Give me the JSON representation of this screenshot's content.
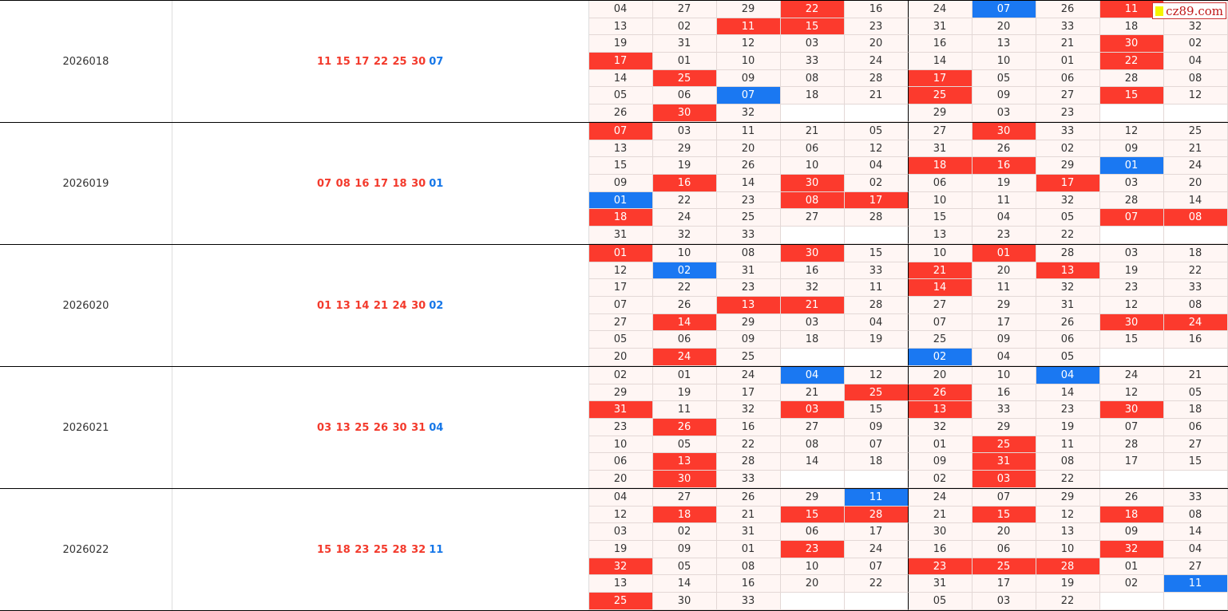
{
  "logo": {
    "text": "cz89.com"
  },
  "groups": [
    {
      "issue": "2026018",
      "reds": "11 15 17 22 25 30",
      "blue": "07",
      "values": [
        [
          "04",
          "27",
          "29",
          "22",
          "16",
          "24",
          "07",
          "26",
          "11",
          ""
        ],
        [
          "13",
          "02",
          "11",
          "15",
          "23",
          "31",
          "20",
          "33",
          "18",
          "32"
        ],
        [
          "19",
          "31",
          "12",
          "03",
          "20",
          "16",
          "13",
          "21",
          "30",
          "02"
        ],
        [
          "17",
          "01",
          "10",
          "33",
          "24",
          "14",
          "10",
          "01",
          "22",
          "04"
        ],
        [
          "14",
          "25",
          "09",
          "08",
          "28",
          "17",
          "05",
          "06",
          "28",
          "08"
        ],
        [
          "05",
          "06",
          "07",
          "18",
          "21",
          "25",
          "09",
          "27",
          "15",
          "12"
        ],
        [
          "26",
          "30",
          "32",
          "",
          "",
          "29",
          "03",
          "23",
          "",
          ""
        ]
      ],
      "marks": [
        [
          "",
          "",
          "",
          "r",
          "",
          "",
          "b",
          "",
          "r",
          ""
        ],
        [
          "",
          "",
          "r",
          "r",
          "",
          "",
          "",
          "",
          "",
          ""
        ],
        [
          "",
          "",
          "",
          "",
          "",
          "",
          "",
          "",
          "r",
          ""
        ],
        [
          "r",
          "",
          "",
          "",
          "",
          "",
          "",
          "",
          "r",
          ""
        ],
        [
          "",
          "r",
          "",
          "",
          "",
          "r",
          "",
          "",
          "",
          ""
        ],
        [
          "",
          "",
          "b",
          "",
          "",
          "r",
          "",
          "",
          "r",
          ""
        ],
        [
          "",
          "r",
          "",
          "",
          "",
          "",
          "",
          "",
          "",
          ""
        ]
      ]
    },
    {
      "issue": "2026019",
      "reds": "07 08 16 17 18 30",
      "blue": "01",
      "values": [
        [
          "07",
          "03",
          "11",
          "21",
          "05",
          "27",
          "30",
          "33",
          "12",
          "25"
        ],
        [
          "13",
          "29",
          "20",
          "06",
          "12",
          "31",
          "26",
          "02",
          "09",
          "21"
        ],
        [
          "15",
          "19",
          "26",
          "10",
          "04",
          "18",
          "16",
          "29",
          "01",
          "24"
        ],
        [
          "09",
          "16",
          "14",
          "30",
          "02",
          "06",
          "19",
          "17",
          "03",
          "20"
        ],
        [
          "01",
          "22",
          "23",
          "08",
          "17",
          "10",
          "11",
          "32",
          "28",
          "14"
        ],
        [
          "18",
          "24",
          "25",
          "27",
          "28",
          "15",
          "04",
          "05",
          "07",
          "08"
        ],
        [
          "31",
          "32",
          "33",
          "",
          "",
          "13",
          "23",
          "22",
          "",
          ""
        ]
      ],
      "marks": [
        [
          "r",
          "",
          "",
          "",
          "",
          "",
          "r",
          "",
          "",
          ""
        ],
        [
          "",
          "",
          "",
          "",
          "",
          "",
          "",
          "",
          "",
          ""
        ],
        [
          "",
          "",
          "",
          "",
          "",
          "r",
          "r",
          "",
          "b",
          ""
        ],
        [
          "",
          "r",
          "",
          "r",
          "",
          "",
          "",
          "r",
          "",
          ""
        ],
        [
          "b",
          "",
          "",
          "r",
          "r",
          "",
          "",
          "",
          "",
          ""
        ],
        [
          "r",
          "",
          "",
          "",
          "",
          "",
          "",
          "",
          "r",
          "r"
        ],
        [
          "",
          "",
          "",
          "",
          "",
          "",
          "",
          "",
          "",
          ""
        ]
      ]
    },
    {
      "issue": "2026020",
      "reds": "01 13 14 21 24 30",
      "blue": "02",
      "values": [
        [
          "01",
          "10",
          "08",
          "30",
          "15",
          "10",
          "01",
          "28",
          "03",
          "18"
        ],
        [
          "12",
          "02",
          "31",
          "16",
          "33",
          "21",
          "20",
          "13",
          "19",
          "22"
        ],
        [
          "17",
          "22",
          "23",
          "32",
          "11",
          "14",
          "11",
          "32",
          "23",
          "33"
        ],
        [
          "07",
          "26",
          "13",
          "21",
          "28",
          "27",
          "29",
          "31",
          "12",
          "08"
        ],
        [
          "27",
          "14",
          "29",
          "03",
          "04",
          "07",
          "17",
          "26",
          "30",
          "24"
        ],
        [
          "05",
          "06",
          "09",
          "18",
          "19",
          "25",
          "09",
          "06",
          "15",
          "16"
        ],
        [
          "20",
          "24",
          "25",
          "",
          "",
          "02",
          "04",
          "05",
          "",
          ""
        ]
      ],
      "marks": [
        [
          "r",
          "",
          "",
          "r",
          "",
          "",
          "r",
          "",
          "",
          ""
        ],
        [
          "",
          "b",
          "",
          "",
          "",
          "r",
          "",
          "r",
          "",
          ""
        ],
        [
          "",
          "",
          "",
          "",
          "",
          "r",
          "",
          "",
          "",
          ""
        ],
        [
          "",
          "",
          "r",
          "r",
          "",
          "",
          "",
          "",
          "",
          ""
        ],
        [
          "",
          "r",
          "",
          "",
          "",
          "",
          "",
          "",
          "r",
          "r"
        ],
        [
          "",
          "",
          "",
          "",
          "",
          "",
          "",
          "",
          "",
          ""
        ],
        [
          "",
          "r",
          "",
          "",
          "",
          "b",
          "",
          "",
          "",
          ""
        ]
      ]
    },
    {
      "issue": "2026021",
      "reds": "03 13 25 26 30 31",
      "blue": "04",
      "values": [
        [
          "02",
          "01",
          "24",
          "04",
          "12",
          "20",
          "10",
          "04",
          "24",
          "21"
        ],
        [
          "29",
          "19",
          "17",
          "21",
          "25",
          "26",
          "16",
          "14",
          "12",
          "05"
        ],
        [
          "31",
          "11",
          "32",
          "03",
          "15",
          "13",
          "33",
          "23",
          "30",
          "18"
        ],
        [
          "23",
          "26",
          "16",
          "27",
          "09",
          "32",
          "29",
          "19",
          "07",
          "06"
        ],
        [
          "10",
          "05",
          "22",
          "08",
          "07",
          "01",
          "25",
          "11",
          "28",
          "27"
        ],
        [
          "06",
          "13",
          "28",
          "14",
          "18",
          "09",
          "31",
          "08",
          "17",
          "15"
        ],
        [
          "20",
          "30",
          "33",
          "",
          "",
          "02",
          "03",
          "22",
          "",
          ""
        ]
      ],
      "marks": [
        [
          "",
          "",
          "",
          "b",
          "",
          "",
          "",
          "b",
          "",
          ""
        ],
        [
          "",
          "",
          "",
          "",
          "r",
          "r",
          "",
          "",
          "",
          ""
        ],
        [
          "r",
          "",
          "",
          "r",
          "",
          "r",
          "",
          "",
          "r",
          ""
        ],
        [
          "",
          "r",
          "",
          "",
          "",
          "",
          "",
          "",
          "",
          ""
        ],
        [
          "",
          "",
          "",
          "",
          "",
          "",
          "r",
          "",
          "",
          ""
        ],
        [
          "",
          "r",
          "",
          "",
          "",
          "",
          "r",
          "",
          "",
          ""
        ],
        [
          "",
          "r",
          "",
          "",
          "",
          "",
          "r",
          "",
          "",
          ""
        ]
      ]
    },
    {
      "issue": "2026022",
      "reds": "15 18 23 25 28 32",
      "blue": "11",
      "values": [
        [
          "04",
          "27",
          "26",
          "29",
          "11",
          "24",
          "07",
          "29",
          "26",
          "33"
        ],
        [
          "12",
          "18",
          "21",
          "15",
          "28",
          "21",
          "15",
          "12",
          "18",
          "08"
        ],
        [
          "03",
          "02",
          "31",
          "06",
          "17",
          "30",
          "20",
          "13",
          "09",
          "14"
        ],
        [
          "19",
          "09",
          "01",
          "23",
          "24",
          "16",
          "06",
          "10",
          "32",
          "04"
        ],
        [
          "32",
          "05",
          "08",
          "10",
          "07",
          "23",
          "25",
          "28",
          "01",
          "27"
        ],
        [
          "13",
          "14",
          "16",
          "20",
          "22",
          "31",
          "17",
          "19",
          "02",
          "11"
        ],
        [
          "25",
          "30",
          "33",
          "",
          "",
          "05",
          "03",
          "22",
          "",
          ""
        ]
      ],
      "marks": [
        [
          "",
          "",
          "",
          "",
          "b",
          "",
          "",
          "",
          "",
          ""
        ],
        [
          "",
          "r",
          "",
          "r",
          "r",
          "",
          "r",
          "",
          "r",
          ""
        ],
        [
          "",
          "",
          "",
          "",
          "",
          "",
          "",
          "",
          "",
          ""
        ],
        [
          "",
          "",
          "",
          "r",
          "",
          "",
          "",
          "",
          "r",
          ""
        ],
        [
          "r",
          "",
          "",
          "",
          "",
          "r",
          "r",
          "r",
          "",
          ""
        ],
        [
          "",
          "",
          "",
          "",
          "",
          "",
          "",
          "",
          "",
          "b"
        ],
        [
          "r",
          "",
          "",
          "",
          "",
          "",
          "",
          "",
          "",
          ""
        ]
      ]
    }
  ]
}
